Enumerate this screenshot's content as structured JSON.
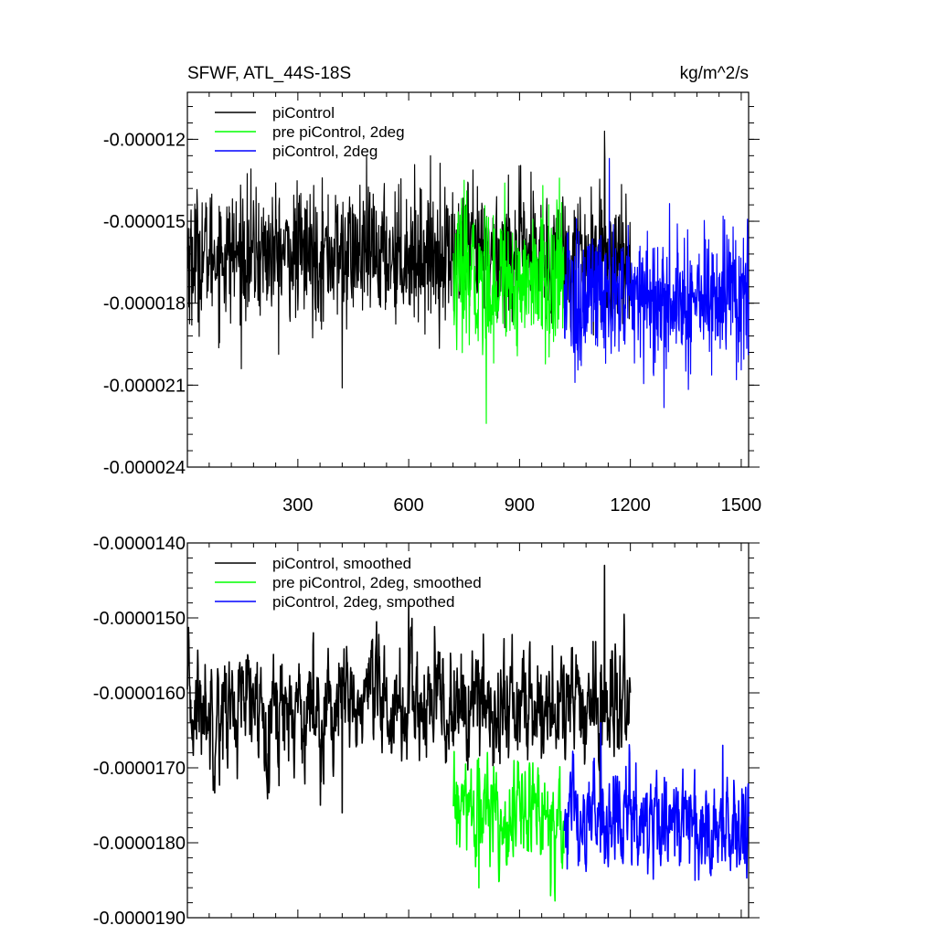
{
  "chart_data": [
    {
      "type": "line",
      "title": "SFWF, ATL_44S-18S",
      "units": "kg/m^2/s",
      "xlabel": "",
      "ylabel": "",
      "xlim": [
        1,
        1520
      ],
      "ylim": [
        -2.4e-05,
        -1.028e-05
      ],
      "x_ticks": [
        300,
        600,
        900,
        1200,
        1500
      ],
      "y_ticks": [
        -1.2e-05,
        -1.5e-05,
        -1.8e-05,
        -2.1e-05,
        -2.4e-05
      ],
      "y_tick_labels": [
        "-0.000012",
        "-0.000015",
        "-0.000018",
        "-0.000021",
        "-0.000024"
      ],
      "grid": false,
      "legend_position": "top-left",
      "series": [
        {
          "name": "piControl",
          "color": "#000000",
          "x_range": [
            1,
            1200
          ],
          "mean": -1.62e-05,
          "std": 1.2e-06,
          "smooth": false,
          "peaks": [
            [
              420,
              -2.11e-05
            ],
            [
              1130,
              -1.17e-05
            ],
            [
              13,
              -1.88e-05
            ]
          ]
        },
        {
          "name": "pre piControl, 2deg",
          "color": "#00ff00",
          "x_range": [
            721,
            1020
          ],
          "mean": -1.72e-05,
          "std": 1.3e-06,
          "smooth": false,
          "peaks": [
            [
              810,
              -2.24e-05
            ],
            [
              750,
              -1.35e-05
            ],
            [
              860,
              -1.36e-05
            ]
          ]
        },
        {
          "name": "piControl, 2deg",
          "color": "#0000ff",
          "x_range": [
            1021,
            1520
          ],
          "mean": -1.78e-05,
          "std": 1.3e-06,
          "smooth": false,
          "peaks": [
            [
              1050,
              -2.09e-05
            ],
            [
              1487,
              -2.08e-05
            ],
            [
              1143,
              -1.27e-05
            ]
          ]
        }
      ]
    },
    {
      "type": "line",
      "title": "",
      "xlabel": "",
      "ylabel": "",
      "xlim": [
        1,
        1520
      ],
      "ylim": [
        -1.9e-05,
        -1.4e-05
      ],
      "x_ticks": [
        300,
        600,
        900,
        1200,
        1500
      ],
      "y_ticks": [
        -1.4e-05,
        -1.5e-05,
        -1.6e-05,
        -1.7e-05,
        -1.8e-05,
        -1.9e-05
      ],
      "y_tick_labels": [
        "-0.0000140",
        "-0.0000150",
        "-0.0000160",
        "-0.0000170",
        "-0.0000180",
        "-0.0000190"
      ],
      "grid": false,
      "legend_position": "top-left",
      "series": [
        {
          "name": "piControl, smoothed",
          "color": "#000000",
          "x_range": [
            1,
            1200
          ],
          "mean": -1.62e-05,
          "std": 4.5e-07,
          "smooth": true,
          "peaks": [
            [
              420,
              -1.76e-05
            ],
            [
              1130,
              -1.43e-05
            ],
            [
              600,
              -1.48e-05
            ]
          ]
        },
        {
          "name": "pre piControl, 2deg, smoothed",
          "color": "#00ff00",
          "x_range": [
            721,
            1020
          ],
          "mean": -1.76e-05,
          "std": 4e-07,
          "smooth": true,
          "peaks": [
            [
              790,
              -1.86e-05
            ],
            [
              950,
              -1.7e-05
            ]
          ]
        },
        {
          "name": "piControl, 2deg, smoothed",
          "color": "#0000ff",
          "x_range": [
            1021,
            1520
          ],
          "mean": -1.77e-05,
          "std": 4e-07,
          "smooth": true,
          "peaks": [
            [
              1120,
              -1.64e-05
            ],
            [
              1375,
              -1.85e-05
            ],
            [
              1450,
              -1.67e-05
            ]
          ]
        }
      ]
    }
  ]
}
